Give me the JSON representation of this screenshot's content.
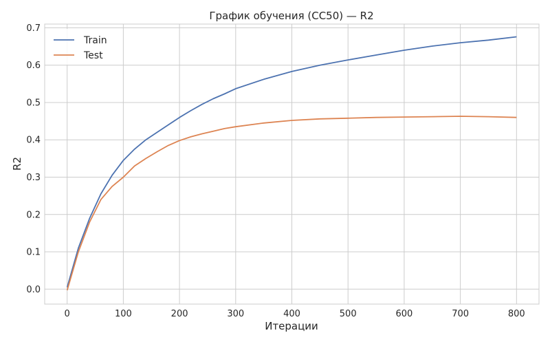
{
  "chart_data": {
    "type": "line",
    "title": "График обучения (CC50) — R2",
    "xlabel": "Итерации",
    "ylabel": "R2",
    "xlim": [
      -40,
      840
    ],
    "ylim": [
      -0.04,
      0.71
    ],
    "xticks": [
      0,
      100,
      200,
      300,
      400,
      500,
      600,
      700,
      800
    ],
    "yticks": [
      0.0,
      0.1,
      0.2,
      0.3,
      0.4,
      0.5,
      0.6,
      0.7
    ],
    "xtick_labels": [
      "0",
      "100",
      "200",
      "300",
      "400",
      "500",
      "600",
      "700",
      "800"
    ],
    "ytick_labels": [
      "0.0",
      "0.1",
      "0.2",
      "0.3",
      "0.4",
      "0.5",
      "0.6",
      "0.7"
    ],
    "grid": true,
    "legend_position": "top-left",
    "x": [
      0,
      20,
      40,
      60,
      80,
      100,
      120,
      140,
      160,
      180,
      200,
      220,
      240,
      260,
      280,
      300,
      350,
      400,
      450,
      500,
      550,
      600,
      650,
      700,
      750,
      800
    ],
    "series": [
      {
        "name": "Train",
        "color": "#4c72b0",
        "values": [
          0.005,
          0.11,
          0.19,
          0.255,
          0.305,
          0.345,
          0.375,
          0.4,
          0.42,
          0.44,
          0.46,
          0.478,
          0.495,
          0.51,
          0.523,
          0.537,
          0.562,
          0.583,
          0.6,
          0.614,
          0.627,
          0.64,
          0.651,
          0.66,
          0.667,
          0.676
        ]
      },
      {
        "name": "Test",
        "color": "#dd8452",
        "values": [
          -0.003,
          0.1,
          0.18,
          0.24,
          0.275,
          0.3,
          0.33,
          0.35,
          0.368,
          0.385,
          0.398,
          0.408,
          0.416,
          0.423,
          0.43,
          0.435,
          0.445,
          0.452,
          0.456,
          0.458,
          0.46,
          0.461,
          0.462,
          0.463,
          0.462,
          0.46
        ]
      }
    ]
  }
}
